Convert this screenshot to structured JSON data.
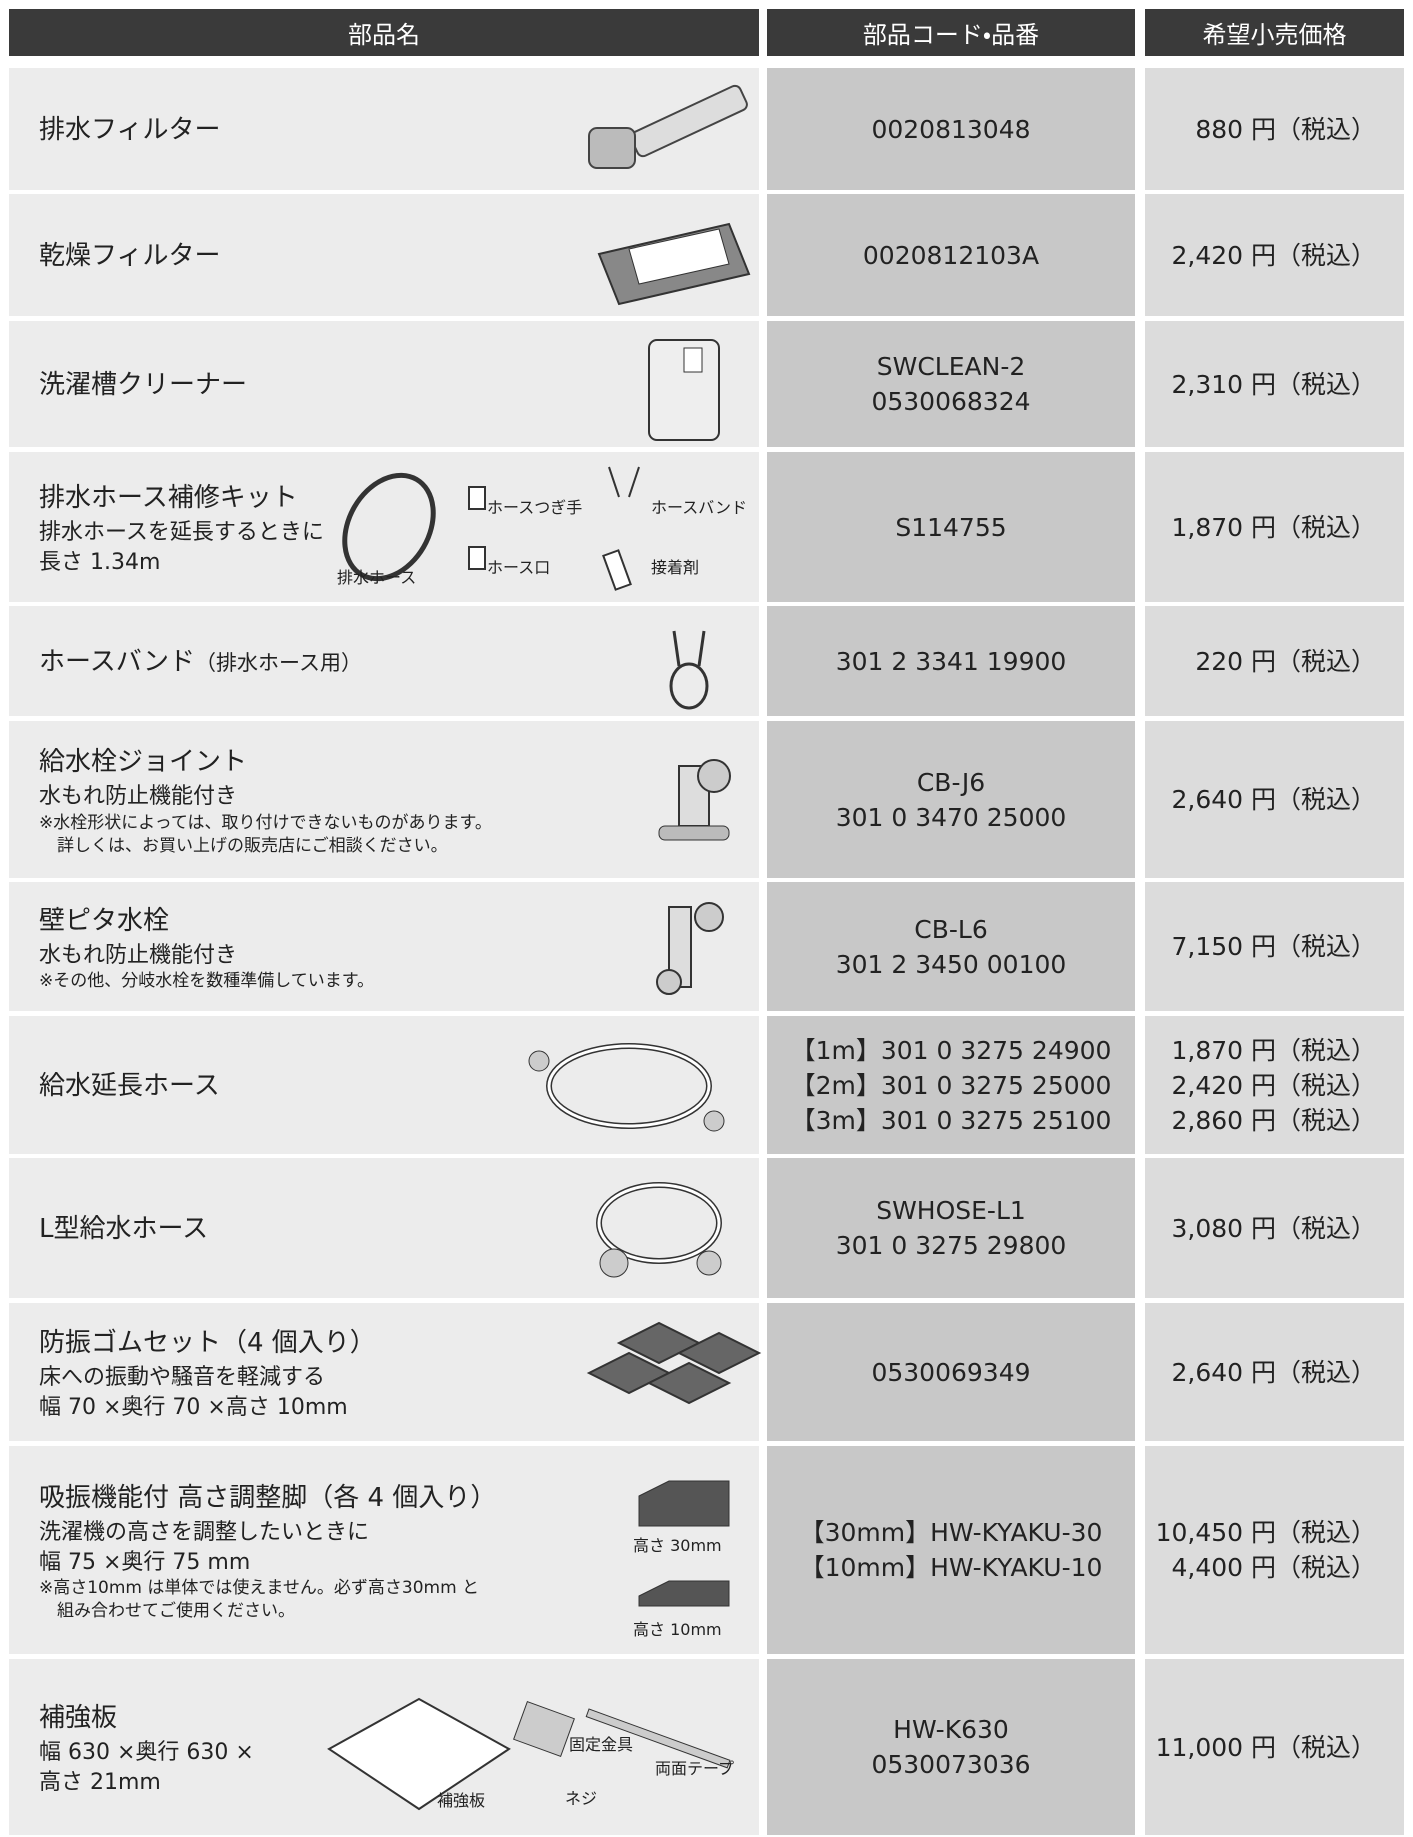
{
  "table": {
    "header": [
      "部品名",
      "部品コード・品番",
      "希望小売価格"
    ],
    "rows": [
      {
        "name": "排水フィルター",
        "codes": [
          "0020813048"
        ],
        "prices": [
          "880 円（税込）"
        ]
      },
      {
        "name": "乾燥フィルター",
        "codes": [
          "0020812103A"
        ],
        "prices": [
          "2,420 円（税込）"
        ]
      },
      {
        "name": "洗濯槽クリーナー",
        "codes": [
          "SWCLEAN-2",
          "0530068324"
        ],
        "prices": [
          "2,310 円（税込）"
        ]
      },
      {
        "name": "排水ホース補修キット",
        "desc": [
          "排水ホースを延長するときに",
          "長さ 1.34m"
        ],
        "parts": [
          "ホースつぎ手",
          "ホースバンド",
          "排水ホース",
          "ホース口",
          "接着剤"
        ],
        "codes": [
          "S114755"
        ],
        "prices": [
          "1,870 円（税込）"
        ]
      },
      {
        "name": "ホースバンド",
        "suffix": "（排水ホース用）",
        "codes": [
          "301 2 3341 19900"
        ],
        "prices": [
          "220 円（税込）"
        ]
      },
      {
        "name": "給水栓ジョイント",
        "desc": [
          "水もれ防止機能付き"
        ],
        "notes": [
          "※水栓形状によっては、取り付けできないものがあります。",
          "詳しくは、お買い上げの販売店にご相談ください。"
        ],
        "codes": [
          "CB-J6",
          "301 0 3470 25000"
        ],
        "prices": [
          "2,640 円（税込）"
        ]
      },
      {
        "name": "壁ピタ水栓",
        "desc": [
          "水もれ防止機能付き"
        ],
        "notes": [
          "※その他、分岐水栓を数種準備しています。"
        ],
        "codes": [
          "CB-L6",
          "301 2 3450 00100"
        ],
        "prices": [
          "7,150 円（税込）"
        ]
      },
      {
        "name": "給水延長ホース",
        "codes": [
          "【1m】301 0 3275 24900",
          "【2m】301 0 3275 25000",
          "【3m】301 0 3275 25100"
        ],
        "prices": [
          "1,870 円（税込）",
          "2,420 円（税込）",
          "2,860 円（税込）"
        ]
      },
      {
        "name": "L型給水ホース",
        "codes": [
          "SWHOSE-L1",
          "301 0 3275 29800"
        ],
        "prices": [
          "3,080 円（税込）"
        ]
      },
      {
        "name": "防振ゴムセット（4 個入り）",
        "desc": [
          "床への振動や騒音を軽減する",
          "幅 70 ×奥行 70 ×高さ 10mm"
        ],
        "codes": [
          "0530069349"
        ],
        "prices": [
          "2,640 円（税込）"
        ]
      },
      {
        "name": "吸振機能付 高さ調整脚（各 4 個入り）",
        "desc": [
          "洗濯機の高さを調整したいときに",
          "幅 75 ×奥行 75 mm"
        ],
        "notes": [
          "※高さ10mm は単体では使えません。必ず高さ30mm と",
          "組み合わせてご使用ください。"
        ],
        "parts": [
          "高さ 30mm",
          "高さ 10mm"
        ],
        "codes": [
          "【30mm】HW-KYAKU-30",
          "【10mm】HW-KYAKU-10"
        ],
        "prices": [
          "10,450 円（税込）",
          "4,400 円（税込）"
        ]
      },
      {
        "name": "補強板",
        "desc": [
          "幅 630 ×奥行 630 ×",
          "高さ 21mm"
        ],
        "parts": [
          "固定金具",
          "両面テープ",
          "補強板",
          "ネジ"
        ],
        "codes": [
          "HW-K630",
          "0530073036"
        ],
        "prices": [
          "11,000 円（税込）"
        ]
      }
    ]
  }
}
